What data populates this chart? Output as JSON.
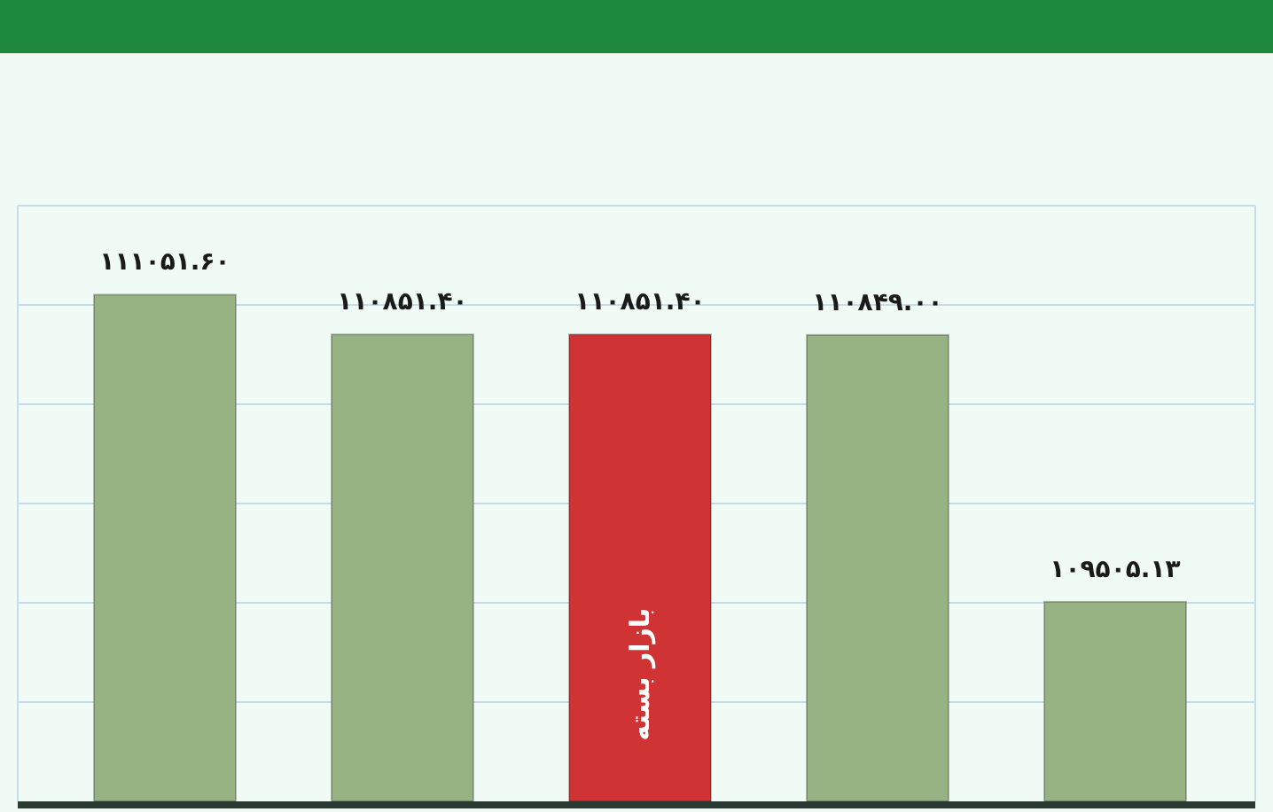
{
  "chart_data": {
    "type": "bar",
    "categories": [
      null,
      null,
      null,
      null,
      null
    ],
    "values": [
      111051.6,
      110851.4,
      110851.4,
      110849.0,
      109505.13
    ],
    "colors": [
      "#97b283",
      "#97b283",
      "#cf3333",
      "#97b283",
      "#97b283"
    ],
    "value_labels": [
      "۱۱۱۰۵۱.۶۰",
      "۱۱۰۸۵۱.۴۰",
      "۱۱۰۸۵۱.۴۰",
      "۱۱۰۸۴۹.۰۰",
      "۱۰۹۵۰۵.۱۳"
    ],
    "ylim": [
      108500,
      111500
    ],
    "yticks": [
      {
        "value": 109000,
        "label": null
      },
      {
        "value": 109500,
        "label": null
      },
      {
        "value": 110000,
        "label": null
      },
      {
        "value": 110500,
        "label": null
      },
      {
        "value": 111000,
        "label": null
      }
    ],
    "grid": "y",
    "annotations": [
      "بازار بسته"
    ]
  }
}
